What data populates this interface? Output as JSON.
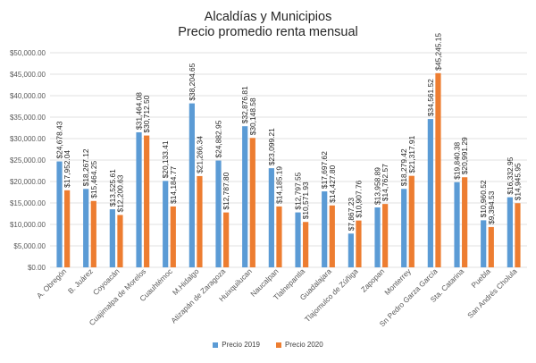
{
  "chart_data": {
    "type": "bar",
    "title": "Alcaldías y Municipios",
    "subtitle": "Precio promedio renta mensual",
    "categories": [
      "A. Obregón",
      "B. Juárez",
      "Coyoacán",
      "Cuajimalpa de Morelos",
      "Cuauhtémoc",
      "M.Hidalgo",
      "Atizapán de Zaragoza",
      "Huixquilucan",
      "Naucalpan",
      "Tlalnepantla",
      "Guadalajara",
      "Tlajomulco de Zúñiga",
      "Zapopan",
      "Monterrey",
      "Sn Pedro Garza García",
      "Sta. Catarina",
      "Puebla",
      "San Andrés Cholula"
    ],
    "series": [
      {
        "name": "Precio 2019",
        "color": "#5B9BD5",
        "values": [
          24678.43,
          18267.12,
          13525.61,
          31464.08,
          20133.41,
          38204.65,
          24882.95,
          32876.81,
          23099.21,
          12797.55,
          17697.62,
          7867.23,
          13958.89,
          18279.42,
          34561.52,
          19840.38,
          10960.52,
          16332.95
        ],
        "labels": [
          "$24,678.43",
          "$18,267.12",
          "$13,525.61",
          "$31,464.08",
          "$20,133.41",
          "$38,204.65",
          "$24,882.95",
          "$32,876.81",
          "$23,099.21",
          "$12,797.55",
          "$17,697.62",
          "$7,867.23",
          "$13,958.89",
          "$18,279.42",
          "$34,561.52",
          "$19,840.38",
          "$10,960.52",
          "$16,332.95"
        ]
      },
      {
        "name": "Precio 2020",
        "color": "#ED7D31",
        "values": [
          17952.04,
          15464.25,
          12200.63,
          30712.5,
          14184.77,
          21266.34,
          12787.8,
          30148.58,
          14185.19,
          10571.93,
          14427.8,
          10907.76,
          14762.57,
          21317.91,
          45245.15,
          20991.29,
          9394.53,
          14945.95
        ],
        "labels": [
          "$17,952.04",
          "$15,464.25",
          "$12,200.63",
          "$30,712.50",
          "$14,184.77",
          "$21,266.34",
          "$12,787.80",
          "$30,148.58",
          "$14,185.19",
          "$10,571.93",
          "$14,427.80",
          "$10,907.76",
          "$14,762.57",
          "$21,317.91",
          "$45,245.15",
          "$20,991.29",
          "$9,394.53",
          "$14,945.95"
        ]
      }
    ],
    "ylim": [
      0,
      50000
    ],
    "yticks": [
      0,
      5000,
      10000,
      15000,
      20000,
      25000,
      30000,
      35000,
      40000,
      45000,
      50000
    ],
    "ytick_labels": [
      "$0.00",
      "$5,000.00",
      "$10,000.00",
      "$15,000.00",
      "$20,000.00",
      "$25,000.00",
      "$30,000.00",
      "$35,000.00",
      "$40,000.00",
      "$45,000.00",
      "$50,000.00"
    ],
    "grid": true,
    "legend_position": "bottom"
  }
}
